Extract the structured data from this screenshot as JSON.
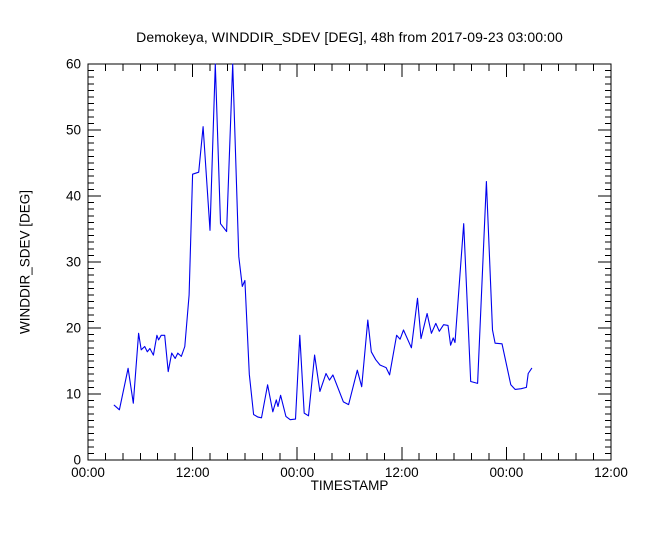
{
  "chart_data": {
    "type": "line",
    "title": "Demokeya, WINDDIR_SDEV [DEG], 48h from 2017-09-23 03:00:00",
    "xlabel": "TIMESTAMP",
    "ylabel": "WINDDIR_SDEV [DEG]",
    "xlim_hours": [
      0,
      60
    ],
    "ylim": [
      0,
      60
    ],
    "x_major_tick_hours": [
      0,
      12,
      24,
      36,
      48,
      60
    ],
    "x_tick_labels": [
      "00:00",
      "12:00",
      "00:00",
      "12:00",
      "00:00",
      "12:00"
    ],
    "x_minor_step_hours": 2,
    "y_major_ticks": [
      0,
      10,
      20,
      30,
      40,
      50,
      60
    ],
    "y_tick_labels": [
      "0",
      "10",
      "20",
      "30",
      "40",
      "50",
      "60"
    ],
    "y_minor_step": 1,
    "grid": "off",
    "legend": "none",
    "background": "#ffffff",
    "axis_color": "#000000",
    "line_color": "#0000ee",
    "series": [
      {
        "name": "WINDDIR_SDEV",
        "units": "DEG",
        "points_hours_value": [
          [
            3.0,
            8.3
          ],
          [
            3.6,
            7.6
          ],
          [
            4.6,
            13.9
          ],
          [
            5.2,
            8.6
          ],
          [
            5.8,
            19.2
          ],
          [
            6.1,
            16.7
          ],
          [
            6.5,
            17.2
          ],
          [
            6.8,
            16.4
          ],
          [
            7.1,
            16.9
          ],
          [
            7.5,
            15.9
          ],
          [
            7.9,
            18.9
          ],
          [
            8.1,
            18.2
          ],
          [
            8.4,
            18.9
          ],
          [
            8.8,
            18.9
          ],
          [
            9.2,
            13.4
          ],
          [
            9.6,
            16.2
          ],
          [
            10.0,
            15.4
          ],
          [
            10.3,
            16.2
          ],
          [
            10.7,
            15.7
          ],
          [
            11.1,
            17.2
          ],
          [
            11.6,
            25.0
          ],
          [
            12.0,
            43.3
          ],
          [
            12.7,
            43.6
          ],
          [
            13.2,
            50.5
          ],
          [
            14.0,
            34.8
          ],
          [
            14.6,
            60.0
          ],
          [
            15.2,
            35.8
          ],
          [
            15.9,
            34.6
          ],
          [
            16.6,
            60.0
          ],
          [
            17.3,
            30.8
          ],
          [
            17.7,
            26.3
          ],
          [
            18.0,
            27.2
          ],
          [
            18.5,
            13.0
          ],
          [
            19.0,
            6.9
          ],
          [
            19.5,
            6.5
          ],
          [
            19.9,
            6.4
          ],
          [
            20.6,
            11.4
          ],
          [
            21.2,
            7.3
          ],
          [
            21.6,
            9.1
          ],
          [
            21.8,
            8.1
          ],
          [
            22.1,
            9.8
          ],
          [
            22.7,
            6.6
          ],
          [
            23.2,
            6.1
          ],
          [
            23.8,
            6.2
          ],
          [
            24.3,
            18.9
          ],
          [
            24.8,
            7.1
          ],
          [
            25.3,
            6.7
          ],
          [
            26.0,
            15.9
          ],
          [
            26.6,
            10.4
          ],
          [
            27.3,
            13.1
          ],
          [
            27.7,
            12.1
          ],
          [
            28.1,
            12.9
          ],
          [
            29.3,
            8.8
          ],
          [
            29.9,
            8.4
          ],
          [
            30.9,
            13.6
          ],
          [
            31.4,
            11.1
          ],
          [
            32.1,
            21.2
          ],
          [
            32.5,
            16.4
          ],
          [
            33.0,
            15.2
          ],
          [
            33.5,
            14.4
          ],
          [
            34.2,
            14.0
          ],
          [
            34.6,
            12.9
          ],
          [
            35.4,
            18.9
          ],
          [
            35.8,
            18.3
          ],
          [
            36.2,
            19.7
          ],
          [
            37.1,
            17.0
          ],
          [
            37.8,
            24.5
          ],
          [
            38.2,
            18.4
          ],
          [
            38.9,
            22.2
          ],
          [
            39.4,
            19.2
          ],
          [
            39.9,
            20.7
          ],
          [
            40.3,
            19.5
          ],
          [
            40.8,
            20.5
          ],
          [
            41.3,
            20.4
          ],
          [
            41.6,
            17.4
          ],
          [
            41.9,
            18.5
          ],
          [
            42.1,
            17.8
          ],
          [
            43.1,
            35.8
          ],
          [
            43.9,
            11.9
          ],
          [
            44.7,
            11.6
          ],
          [
            45.7,
            42.2
          ],
          [
            46.4,
            19.7
          ],
          [
            46.7,
            17.7
          ],
          [
            47.5,
            17.6
          ],
          [
            48.5,
            11.4
          ],
          [
            49.0,
            10.7
          ],
          [
            49.7,
            10.8
          ],
          [
            50.3,
            11.0
          ],
          [
            50.5,
            13.1
          ],
          [
            50.9,
            13.9
          ]
        ]
      }
    ]
  }
}
